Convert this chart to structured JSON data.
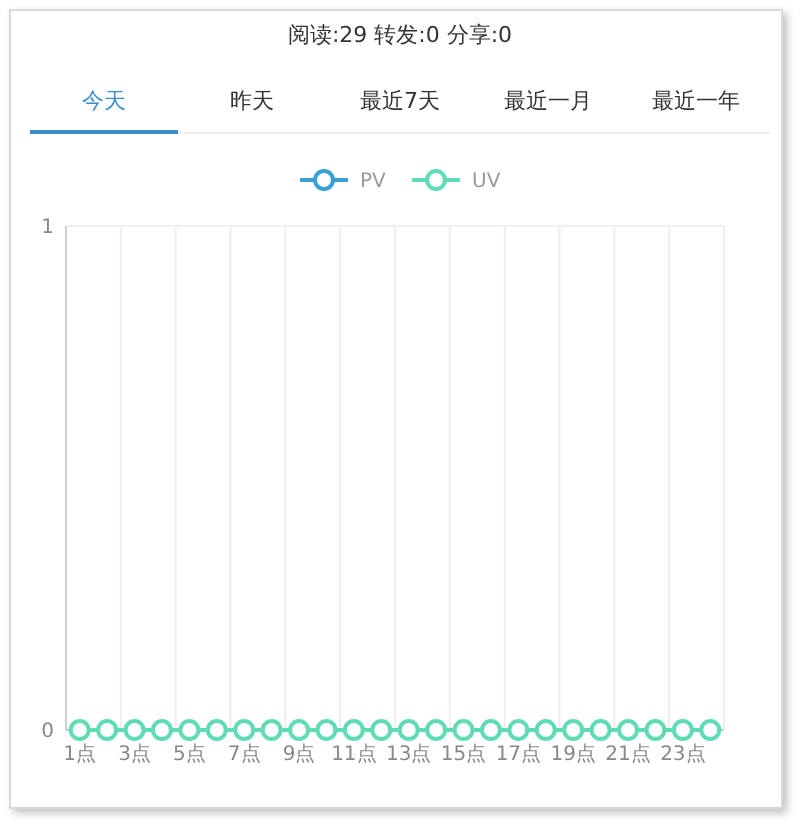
{
  "chart_data": {
    "type": "line",
    "title": "阅读:29 转发:0 分享:0",
    "annotations": [
      "今天",
      "昨天",
      "最近7天",
      "最近一月",
      "最近一年"
    ],
    "categories": [
      "1点",
      null,
      "3点",
      null,
      "5点",
      null,
      "7点",
      null,
      "9点",
      null,
      "11点",
      null,
      "13点",
      null,
      "15点",
      null,
      "17点",
      null,
      "19点",
      null,
      "21点",
      null,
      "23点",
      null
    ],
    "series": [
      {
        "name": "PV",
        "color": "#3a9fd8",
        "values": [
          null,
          null,
          null,
          null,
          null,
          null,
          null,
          null,
          null,
          null,
          null,
          null,
          null,
          null,
          null,
          null,
          null,
          null,
          null,
          null,
          null,
          null,
          null,
          null
        ]
      },
      {
        "name": "UV",
        "color": "#5fdcb5",
        "values": [
          0,
          0,
          0,
          0,
          0,
          0,
          0,
          0,
          0,
          0,
          0,
          0,
          0,
          0,
          0,
          0,
          0,
          0,
          0,
          0,
          0,
          0,
          0,
          0
        ]
      }
    ],
    "ylim": [
      0,
      1
    ],
    "yticks": [
      0,
      1
    ],
    "grid": true,
    "legend": "top",
    "marker": "circle",
    "line_style": "solid"
  }
}
